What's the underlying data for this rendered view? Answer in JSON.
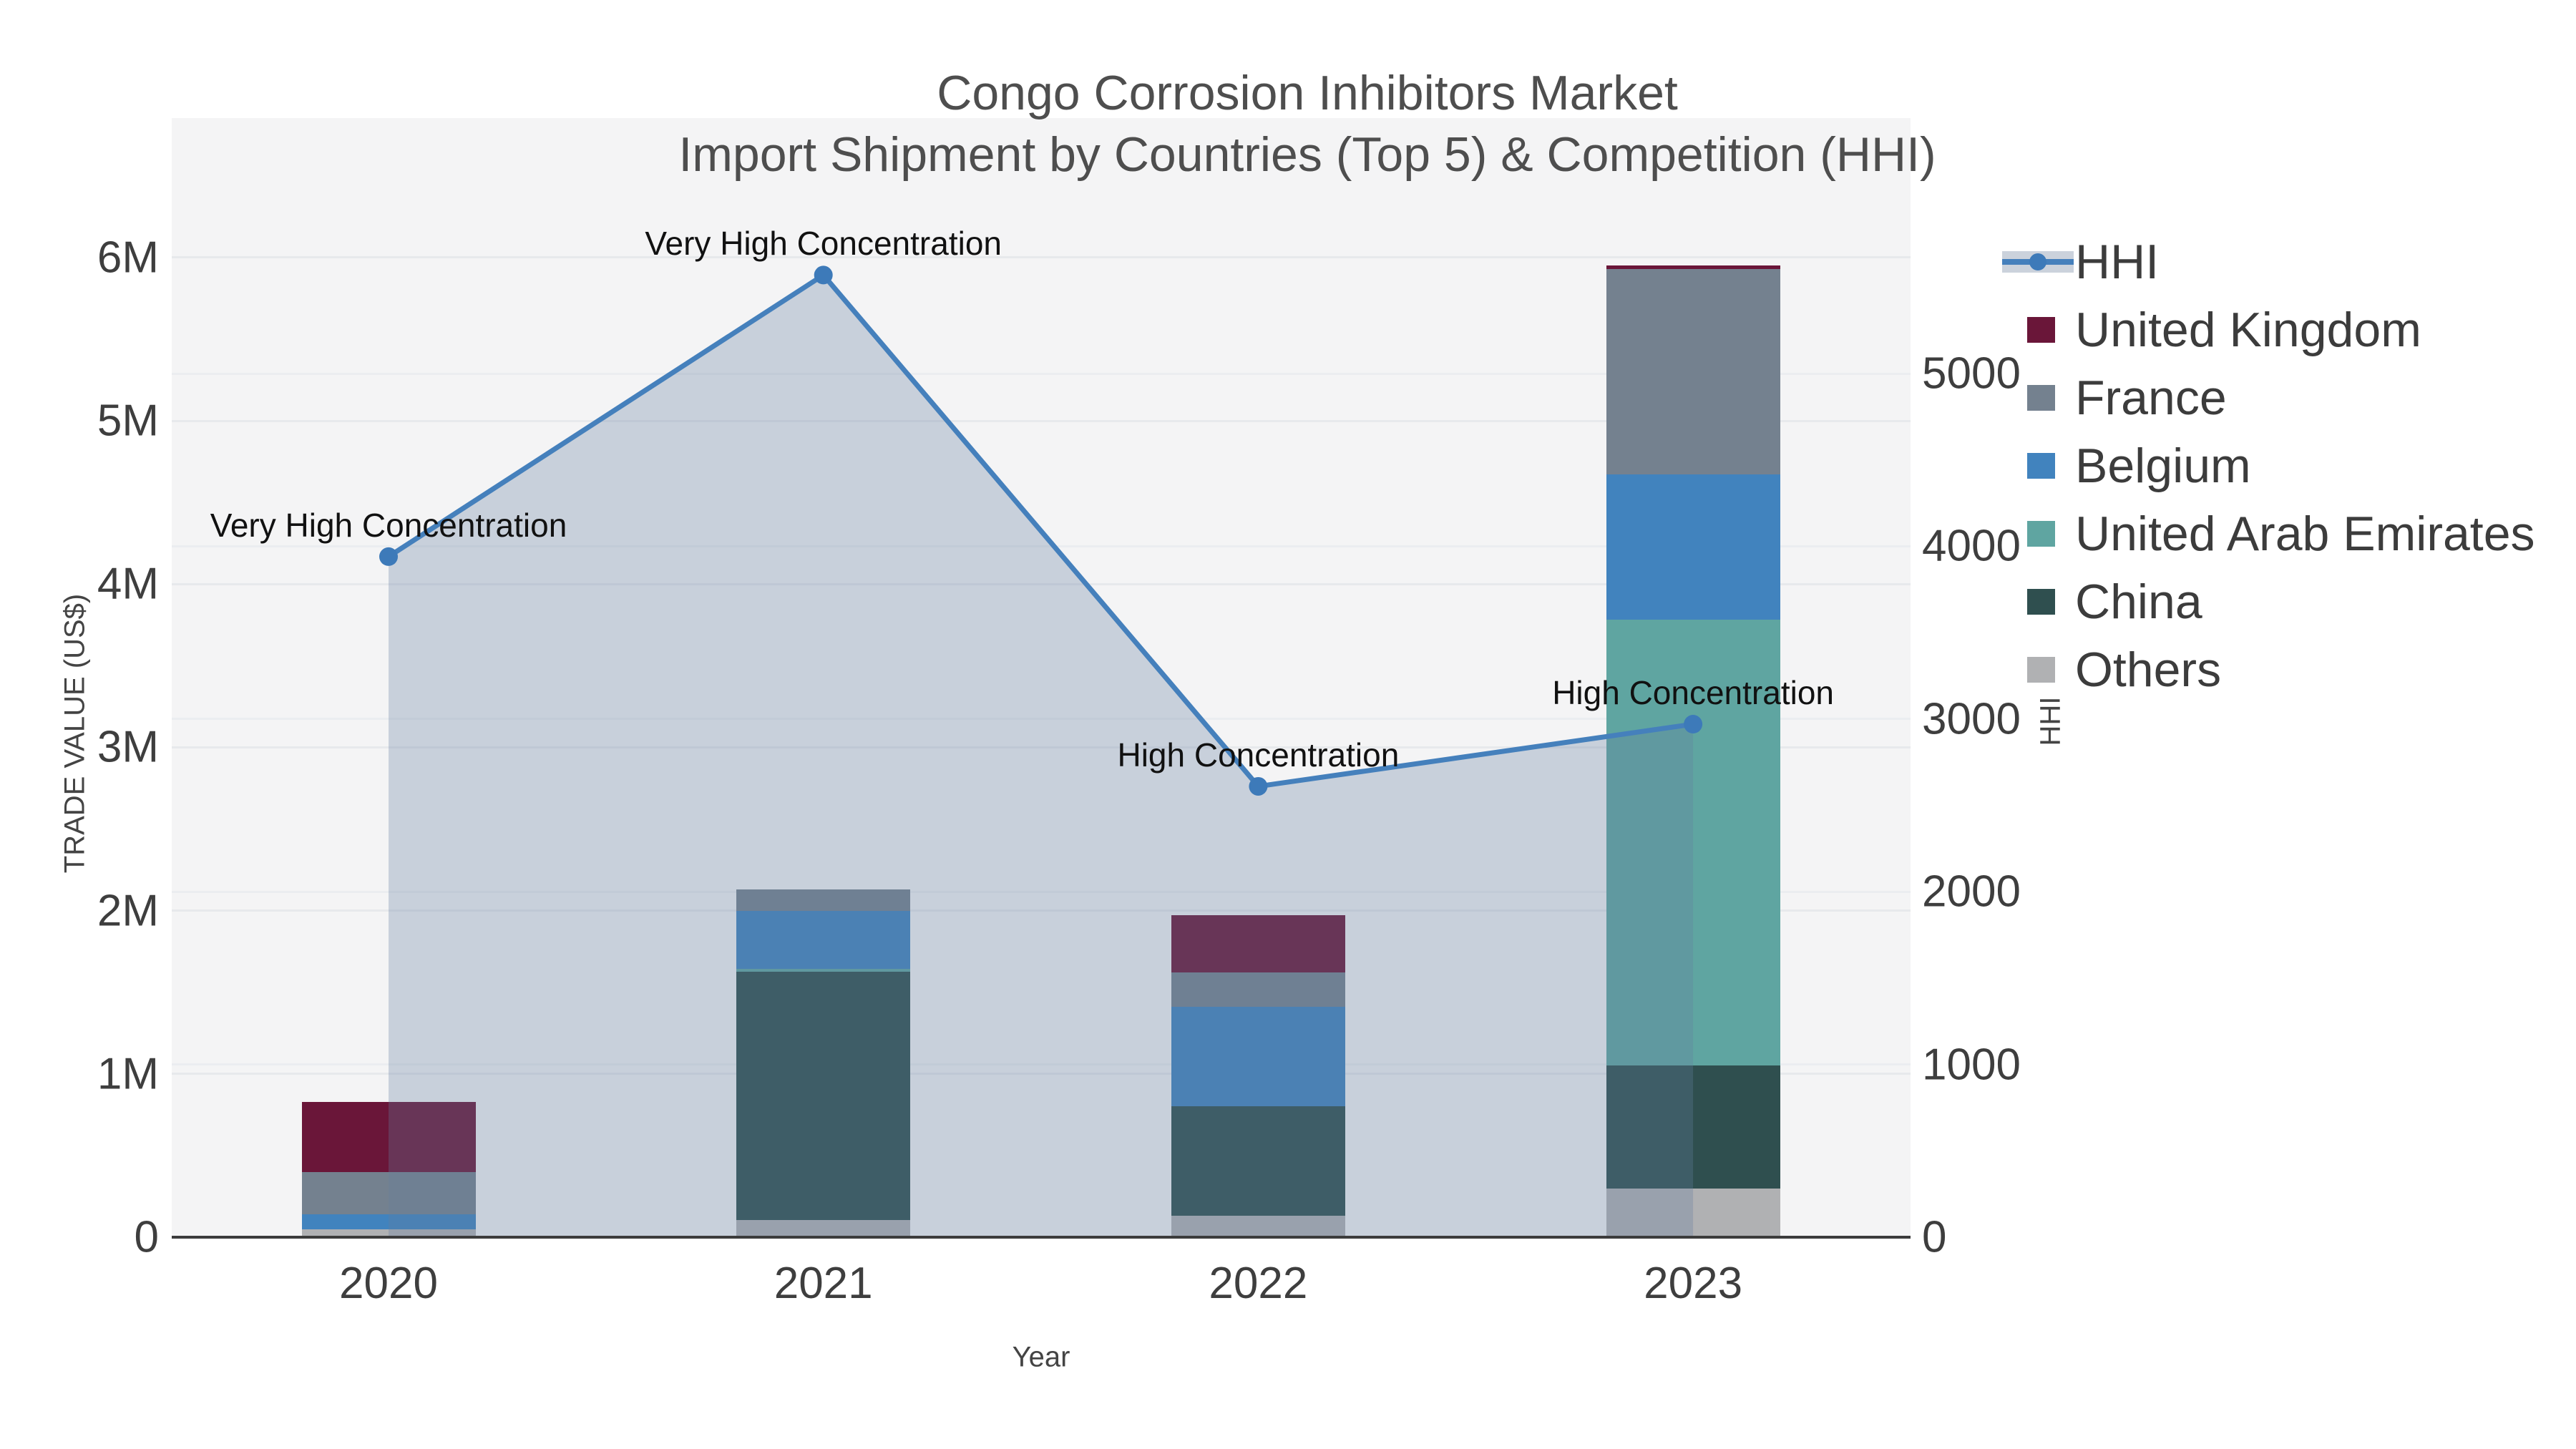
{
  "title": {
    "line1": "Congo Corrosion Inhibitors Market",
    "line2": "Import Shipment by Countries (Top 5) & Competition (HHI)"
  },
  "axes": {
    "y_left": {
      "title": "TRADE VALUE (US$)",
      "ticks": [
        "0",
        "1M",
        "2M",
        "3M",
        "4M",
        "5M",
        "6M"
      ],
      "tick_values_musd": [
        0,
        1,
        2,
        3,
        4,
        5,
        6
      ]
    },
    "y_right": {
      "title": "HHI",
      "ticks": [
        "0",
        "1000",
        "2000",
        "3000",
        "4000",
        "5000"
      ],
      "tick_values": [
        0,
        1000,
        2000,
        3000,
        4000,
        5000
      ]
    },
    "x": {
      "title": "Year",
      "ticks": [
        "2020",
        "2021",
        "2022",
        "2023"
      ]
    }
  },
  "legend": {
    "items": [
      {
        "label": "HHI",
        "type": "line",
        "color": "#4580BC"
      },
      {
        "label": "United Kingdom",
        "type": "swatch",
        "color": "#6A1639"
      },
      {
        "label": "France",
        "type": "swatch",
        "color": "#74818F"
      },
      {
        "label": "Belgium",
        "type": "swatch",
        "color": "#4183BE"
      },
      {
        "label": "United Arab Emirates",
        "type": "swatch",
        "color": "#5FA5A1"
      },
      {
        "label": "China",
        "type": "swatch",
        "color": "#2F4F4F"
      },
      {
        "label": "Others",
        "type": "swatch",
        "color": "#B0B1B3"
      }
    ]
  },
  "chart_data": {
    "type": "bar",
    "combo": [
      "stacked-bar",
      "line-area"
    ],
    "x": [
      "2020",
      "2021",
      "2022",
      "2023"
    ],
    "bar_unit": "US$ millions",
    "bar_stack_bottom_to_top": [
      "Others",
      "China",
      "United Arab Emirates",
      "Belgium",
      "France",
      "United Kingdom"
    ],
    "series": [
      {
        "name": "Others",
        "color": "#B0B1B3",
        "values": [
          0.05,
          0.105,
          0.13,
          0.3
        ]
      },
      {
        "name": "China",
        "color": "#2F4F4F",
        "values": [
          0.0,
          1.52,
          0.67,
          0.75
        ]
      },
      {
        "name": "United Arab Emirates",
        "color": "#5FA5A1",
        "values": [
          0.0,
          0.02,
          0.0,
          2.73
        ]
      },
      {
        "name": "Belgium",
        "color": "#4183BE",
        "values": [
          0.09,
          0.355,
          0.61,
          0.89
        ]
      },
      {
        "name": "France",
        "color": "#74818F",
        "values": [
          0.26,
          0.13,
          0.21,
          1.26
        ]
      },
      {
        "name": "United Kingdom",
        "color": "#6A1639",
        "values": [
          0.43,
          0.0,
          0.35,
          0.02
        ]
      }
    ],
    "bar_totals_musd": [
      0.83,
      2.13,
      1.97,
      5.95
    ],
    "line": {
      "name": "HHI",
      "axis": "right",
      "values": [
        3940,
        5570,
        2610,
        2970
      ],
      "color": "#4580BC",
      "marker_color": "#3D7AB9",
      "fill_to_zero": true,
      "fill_color": "rgba(99,125,160,0.30)"
    },
    "annotations": [
      {
        "x": "2020",
        "text": "Very High Concentration"
      },
      {
        "x": "2021",
        "text": "Very High Concentration"
      },
      {
        "x": "2022",
        "text": "High Concentration"
      },
      {
        "x": "2023",
        "text": "High Concentration"
      }
    ],
    "title": "Congo Corrosion Inhibitors Market — Import Shipment by Countries (Top 5) & Competition (HHI)",
    "xlabel": "Year",
    "ylabel_left": "TRADE VALUE (US$)",
    "ylabel_right": "HHI",
    "y_left_range_musd": [
      0,
      6.85
    ],
    "y_right_range": [
      0,
      5790
    ],
    "grid": true,
    "legend_position": "right",
    "plot_background": "#F4F4F5"
  }
}
